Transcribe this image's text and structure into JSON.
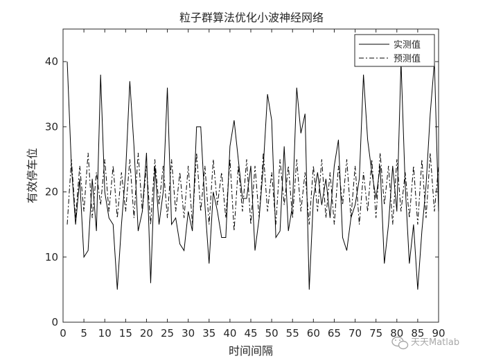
{
  "chart_data": {
    "type": "line",
    "title": "粒子群算法优化小波神经网络",
    "xlabel": "时间间隔",
    "ylabel": "有效停车位",
    "xlim": [
      0,
      90
    ],
    "ylim": [
      0,
      45
    ],
    "xticks": [
      0,
      5,
      10,
      15,
      20,
      25,
      30,
      35,
      40,
      45,
      50,
      55,
      60,
      65,
      70,
      75,
      80,
      85,
      90
    ],
    "yticks": [
      0,
      10,
      20,
      30,
      40
    ],
    "grid": false,
    "legend_position": "top-right",
    "x": [
      1,
      2,
      3,
      4,
      5,
      6,
      7,
      8,
      9,
      10,
      11,
      12,
      13,
      14,
      15,
      16,
      17,
      18,
      19,
      20,
      21,
      22,
      23,
      24,
      25,
      26,
      27,
      28,
      29,
      30,
      31,
      32,
      33,
      34,
      35,
      36,
      37,
      38,
      39,
      40,
      41,
      42,
      43,
      44,
      45,
      46,
      47,
      48,
      49,
      50,
      51,
      52,
      53,
      54,
      55,
      56,
      57,
      58,
      59,
      60,
      61,
      62,
      63,
      64,
      65,
      66,
      67,
      68,
      69,
      70,
      71,
      72,
      73,
      74,
      75,
      76,
      77,
      78,
      79,
      80,
      81,
      82,
      83,
      84,
      85,
      86,
      87,
      88,
      89,
      90
    ],
    "series": [
      {
        "name": "实测值",
        "style": "solid",
        "values": [
          40,
          24,
          15,
          22,
          10,
          11,
          22,
          14,
          38,
          20,
          16,
          15,
          5,
          15,
          23,
          37,
          27,
          14,
          17,
          26,
          6,
          24,
          15,
          20,
          36,
          15,
          16,
          12,
          11,
          17,
          14,
          30,
          30,
          18,
          9,
          20,
          17,
          13,
          13,
          27,
          31,
          25,
          19,
          19,
          24,
          11,
          16,
          24,
          35,
          31,
          13,
          14,
          27,
          14,
          18,
          36,
          29,
          32,
          5,
          19,
          23,
          18,
          22,
          16,
          24,
          28,
          13,
          11,
          16,
          18,
          22,
          38,
          28,
          23,
          19,
          24,
          9,
          15,
          24,
          17,
          40,
          21,
          9,
          15,
          5,
          14,
          21,
          32,
          40,
          17
        ]
      },
      {
        "name": "预测值",
        "style": "dashdot",
        "values": [
          15,
          25,
          16,
          24,
          17,
          26,
          16,
          23,
          18,
          25,
          17,
          24,
          16,
          23,
          17,
          25,
          16,
          26,
          17,
          24,
          15,
          25,
          18,
          24,
          16,
          25,
          17,
          23,
          16,
          24,
          15,
          26,
          17,
          24,
          15,
          25,
          18,
          23,
          16,
          25,
          14,
          24,
          17,
          25,
          15,
          24,
          16,
          26,
          17,
          23,
          15,
          25,
          18,
          24,
          16,
          25,
          17,
          23,
          15,
          24,
          17,
          25,
          16,
          23,
          15,
          24,
          18,
          25,
          16,
          24,
          15,
          23,
          17,
          25,
          16,
          26,
          18,
          24,
          15,
          25,
          17,
          23,
          16,
          24,
          15,
          25,
          16,
          26,
          17,
          24
        ]
      }
    ]
  },
  "watermark": {
    "text": "天天Matlab",
    "icon": "wechat-icon"
  },
  "colors": {
    "axis": "#262626",
    "series_line": "#000000",
    "watermark": "#a8a8a8"
  }
}
